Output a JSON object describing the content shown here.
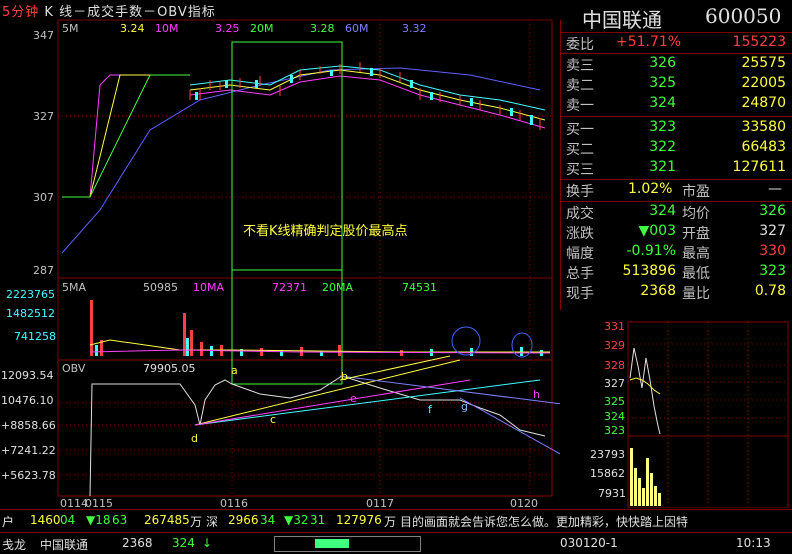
{
  "window": {
    "title_period": "5分钟",
    "title_rest": "K 线－成交手数－OBV指标",
    "stock_name": "中国联通",
    "stock_code": "600050"
  },
  "kline": {
    "period_label": "5M",
    "ma_values": [
      "3.24",
      "3.25",
      "3.28",
      "3.32"
    ],
    "ma_names": [
      "10M",
      "20M",
      "60M"
    ],
    "price_ticks": [
      "347",
      "327",
      "307",
      "287"
    ],
    "annotation": "不看K线精确判定股价最高点"
  },
  "volume": {
    "label": "5MA",
    "values": [
      "50985",
      "72371",
      "74531"
    ],
    "ma_names": [
      "10MA",
      "20MA"
    ],
    "ticks": [
      "2223765",
      "1482512",
      "741258"
    ]
  },
  "obv": {
    "label": "OBV",
    "value": "79905.05",
    "ticks": [
      "12093.54",
      "10476.10",
      "+8858.66",
      "+7241.22",
      "+5623.78"
    ],
    "points": [
      "a",
      "b",
      "c",
      "d",
      "e",
      "f",
      "g",
      "h"
    ]
  },
  "xaxis": {
    "ticks": [
      "0114",
      "0115",
      "0116",
      "0117",
      "0120"
    ]
  },
  "quote": {
    "weibi_label": "委比",
    "weibi_pct": "+51.71%",
    "weibi_num": "155223",
    "asks": [
      {
        "label": "卖三",
        "price": "326",
        "vol": "25575"
      },
      {
        "label": "卖二",
        "price": "325",
        "vol": "22005"
      },
      {
        "label": "卖一",
        "price": "324",
        "vol": "24870"
      }
    ],
    "bids": [
      {
        "label": "买一",
        "price": "323",
        "vol": "33580"
      },
      {
        "label": "买二",
        "price": "322",
        "vol": "66483"
      },
      {
        "label": "买三",
        "price": "321",
        "vol": "127611"
      }
    ],
    "turnover_label": "换手",
    "turnover": "1.02%",
    "pe_label": "市盈",
    "pe": "—",
    "stats": [
      {
        "k1": "成交",
        "v1": "324",
        "k2": "均价",
        "v2": "326"
      },
      {
        "k1": "涨跌",
        "v1": "▼003",
        "k2": "开盘",
        "v2": "327"
      },
      {
        "k1": "幅度",
        "v1": "-0.91%",
        "k2": "最高",
        "v2": "330"
      },
      {
        "k1": "总手",
        "v1": "513896",
        "k2": "最低",
        "v2": "323"
      },
      {
        "k1": "现手",
        "v1": "2368",
        "k2": "量比",
        "v2": "0.78"
      }
    ]
  },
  "mini_chart": {
    "price_ticks": [
      "331",
      "329",
      "328",
      "327",
      "325",
      "324",
      "323"
    ],
    "vol_ticks": [
      "23793",
      "15862",
      "7931"
    ]
  },
  "ticker": {
    "items": [
      "户",
      "1460",
      "04",
      "▼18",
      "63",
      "267485",
      "万",
      "深",
      "2966",
      "34",
      "▼32",
      "31",
      "127976",
      "万"
    ],
    "scroll_text": "目的画面就会告诉您怎么做。更加精彩，快快踏上因特"
  },
  "status": {
    "left": "戋龙",
    "name": "中国联通",
    "vol": "2368",
    "price": "324",
    "arrow": "↓",
    "date": "030120-1",
    "time": "10:13"
  }
}
